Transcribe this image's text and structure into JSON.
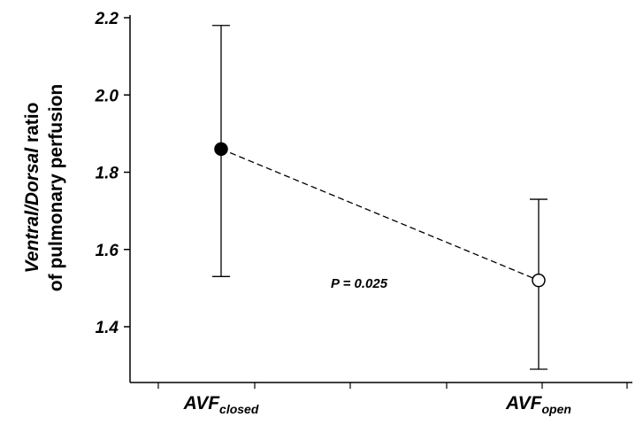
{
  "chart_data": {
    "type": "scatter",
    "title": "",
    "ylabel_line1_italic": "Ventral/Dorsal",
    "ylabel_line1_rest": " ratio",
    "ylabel_line2": "of pulmonary perfusion",
    "xlabel": "",
    "ylim": [
      1.25,
      2.2
    ],
    "yticks": [
      1.4,
      1.6,
      1.8,
      2.0,
      2.2
    ],
    "ytick_labels": [
      "1.4",
      "1.6",
      "1.8",
      "2.0",
      "2.2"
    ],
    "categories": [
      {
        "base": "AVF",
        "sub": "closed"
      },
      {
        "base": "AVF",
        "sub": "open"
      }
    ],
    "series": [
      {
        "values": [
          1.86,
          1.52
        ],
        "err_upper": [
          2.18,
          1.73
        ],
        "err_lower": [
          1.53,
          1.29
        ],
        "markers": [
          "filled",
          "open"
        ],
        "connector": "dashed"
      }
    ],
    "annotation": "P = 0.025",
    "grid": false,
    "legend": "none"
  }
}
